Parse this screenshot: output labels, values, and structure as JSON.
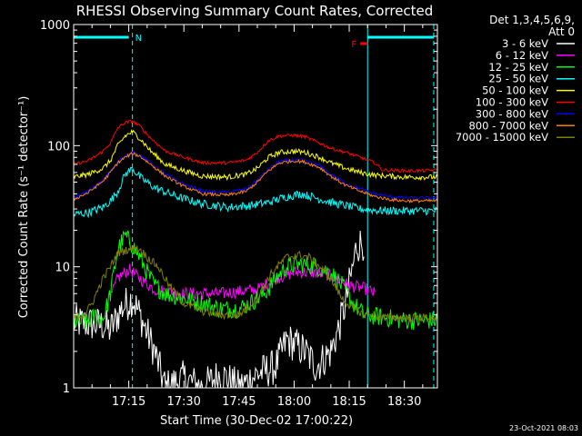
{
  "chart_data": {
    "type": "line",
    "title": "RHESSI Observing Summary Count Rates, Corrected",
    "xlabel": "Start Time (30-Dec-02 17:00:22)",
    "ylabel": "Corrected Count Rate (s⁻¹ detector⁻¹)",
    "y_scale": "log",
    "ylim": [
      1,
      1000
    ],
    "y_ticks": [
      "1",
      "10",
      "100",
      "1000"
    ],
    "x_ticks": [
      "17:15",
      "17:30",
      "17:45",
      "18:00",
      "18:15",
      "18:30"
    ],
    "x_tick_minutes": [
      15,
      30,
      45,
      60,
      75,
      90
    ],
    "xlim_minutes": [
      0,
      99
    ],
    "legend_header": [
      "Det 1,3,4,5,6,9,",
      "Att 0"
    ],
    "legend_position": "right",
    "series": [
      {
        "name": "3 - 6 keV",
        "color": "#ffffff",
        "noise": 0.35,
        "points": [
          [
            0,
            3.5
          ],
          [
            8,
            3.3
          ],
          [
            10,
            3.0
          ],
          [
            13,
            4.5
          ],
          [
            16,
            5.5
          ],
          [
            18,
            4.0
          ],
          [
            22,
            2.0
          ],
          [
            25,
            1.0
          ],
          [
            30,
            1.2
          ],
          [
            35,
            1.0
          ],
          [
            40,
            1.3
          ],
          [
            45,
            1.0
          ],
          [
            50,
            1.3
          ],
          [
            55,
            1.5
          ],
          [
            58,
            2.5
          ],
          [
            60,
            2.3
          ],
          [
            63,
            2.0
          ],
          [
            66,
            1.5
          ],
          [
            70,
            2.0
          ],
          [
            72,
            3.0
          ],
          [
            74,
            5.0
          ],
          [
            76,
            10.0
          ],
          [
            77,
            15.0
          ],
          [
            79,
            16.0
          ]
        ]
      },
      {
        "name": "6 - 12 keV",
        "color": "#ff00ff",
        "noise": 0.12,
        "points": [
          [
            10,
            5.5
          ],
          [
            12,
            8.0
          ],
          [
            15,
            9.5
          ],
          [
            18,
            8.0
          ],
          [
            22,
            6.5
          ],
          [
            30,
            6.0
          ],
          [
            40,
            6.0
          ],
          [
            50,
            6.5
          ],
          [
            55,
            8.0
          ],
          [
            60,
            9.0
          ],
          [
            65,
            9.0
          ],
          [
            70,
            8.5
          ],
          [
            75,
            7.0
          ],
          [
            80,
            6.5
          ],
          [
            82,
            6.0
          ]
        ]
      },
      {
        "name": "12 - 25 keV",
        "color": "#00ff00",
        "noise": 0.18,
        "points": [
          [
            0,
            3.5
          ],
          [
            4,
            3.5
          ],
          [
            6,
            4.0
          ],
          [
            8,
            3.7
          ],
          [
            10,
            6.0
          ],
          [
            12,
            14.0
          ],
          [
            14,
            18.0
          ],
          [
            16,
            15.0
          ],
          [
            18,
            12.0
          ],
          [
            20,
            9.0
          ],
          [
            22,
            7.0
          ],
          [
            25,
            6.0
          ],
          [
            30,
            5.5
          ],
          [
            35,
            5.0
          ],
          [
            40,
            4.5
          ],
          [
            45,
            4.5
          ],
          [
            48,
            5.0
          ],
          [
            52,
            6.0
          ],
          [
            55,
            8.0
          ],
          [
            58,
            10.0
          ],
          [
            62,
            10.5
          ],
          [
            66,
            10.0
          ],
          [
            70,
            9.0
          ],
          [
            73,
            7.0
          ],
          [
            76,
            5.0
          ],
          [
            79,
            4.0
          ],
          [
            85,
            3.8
          ],
          [
            90,
            3.6
          ],
          [
            95,
            3.6
          ],
          [
            99,
            3.6
          ]
        ]
      },
      {
        "name": "25 - 50 keV",
        "color": "#00ffff",
        "noise": 0.08,
        "points": [
          [
            0,
            27
          ],
          [
            4,
            28
          ],
          [
            8,
            31
          ],
          [
            10,
            35
          ],
          [
            12,
            42
          ],
          [
            14,
            58
          ],
          [
            16,
            65
          ],
          [
            18,
            55
          ],
          [
            22,
            45
          ],
          [
            28,
            38
          ],
          [
            35,
            33
          ],
          [
            42,
            31
          ],
          [
            48,
            32
          ],
          [
            53,
            34
          ],
          [
            58,
            38
          ],
          [
            62,
            40
          ],
          [
            66,
            37
          ],
          [
            70,
            34
          ],
          [
            74,
            32
          ],
          [
            78,
            30
          ],
          [
            84,
            29
          ],
          [
            90,
            29
          ],
          [
            95,
            29
          ],
          [
            99,
            29
          ]
        ]
      },
      {
        "name": "50 - 100 keV",
        "color": "#ffff00",
        "noise": 0.05,
        "points": [
          [
            0,
            55
          ],
          [
            4,
            58
          ],
          [
            8,
            65
          ],
          [
            10,
            75
          ],
          [
            12,
            100
          ],
          [
            14,
            120
          ],
          [
            16,
            130
          ],
          [
            18,
            115
          ],
          [
            21,
            90
          ],
          [
            25,
            70
          ],
          [
            30,
            62
          ],
          [
            35,
            56
          ],
          [
            42,
            55
          ],
          [
            47,
            58
          ],
          [
            50,
            65
          ],
          [
            53,
            80
          ],
          [
            56,
            88
          ],
          [
            60,
            90
          ],
          [
            63,
            88
          ],
          [
            67,
            80
          ],
          [
            70,
            72
          ],
          [
            74,
            65
          ],
          [
            78,
            60
          ],
          [
            82,
            57
          ],
          [
            86,
            56
          ],
          [
            90,
            55
          ],
          [
            95,
            55
          ],
          [
            99,
            55
          ]
        ]
      },
      {
        "name": "100 - 300 keV",
        "color": "#ff0000",
        "noise": 0.03,
        "points": [
          [
            0,
            70
          ],
          [
            4,
            75
          ],
          [
            8,
            90
          ],
          [
            10,
            105
          ],
          [
            12,
            140
          ],
          [
            14,
            155
          ],
          [
            16,
            160
          ],
          [
            18,
            145
          ],
          [
            21,
            115
          ],
          [
            25,
            90
          ],
          [
            30,
            80
          ],
          [
            35,
            72
          ],
          [
            42,
            72
          ],
          [
            47,
            76
          ],
          [
            50,
            88
          ],
          [
            53,
            110
          ],
          [
            56,
            120
          ],
          [
            60,
            122
          ],
          [
            63,
            118
          ],
          [
            67,
            105
          ],
          [
            70,
            95
          ],
          [
            74,
            88
          ],
          [
            78,
            80
          ],
          [
            82,
            72
          ],
          [
            84,
            63
          ],
          [
            90,
            62
          ],
          [
            95,
            62
          ],
          [
            99,
            63
          ]
        ]
      },
      {
        "name": "300 - 800 keV",
        "color": "#0000ff",
        "noise": 0.03,
        "points": [
          [
            0,
            37
          ],
          [
            4,
            42
          ],
          [
            8,
            52
          ],
          [
            10,
            62
          ],
          [
            12,
            74
          ],
          [
            14,
            82
          ],
          [
            16,
            88
          ],
          [
            18,
            84
          ],
          [
            21,
            72
          ],
          [
            25,
            58
          ],
          [
            30,
            48
          ],
          [
            35,
            42
          ],
          [
            42,
            41
          ],
          [
            47,
            44
          ],
          [
            50,
            52
          ],
          [
            53,
            64
          ],
          [
            56,
            74
          ],
          [
            60,
            77
          ],
          [
            63,
            75
          ],
          [
            67,
            68
          ],
          [
            70,
            58
          ],
          [
            74,
            49
          ],
          [
            78,
            44
          ],
          [
            82,
            40
          ],
          [
            86,
            38
          ],
          [
            90,
            37
          ],
          [
            95,
            37
          ],
          [
            99,
            37
          ]
        ]
      },
      {
        "name": "800 - 7000 keV",
        "color": "#ff8000",
        "noise": 0.03,
        "points": [
          [
            0,
            36
          ],
          [
            4,
            41
          ],
          [
            8,
            51
          ],
          [
            10,
            60
          ],
          [
            12,
            72
          ],
          [
            14,
            80
          ],
          [
            16,
            86
          ],
          [
            18,
            82
          ],
          [
            21,
            70
          ],
          [
            25,
            56
          ],
          [
            30,
            46
          ],
          [
            35,
            40
          ],
          [
            42,
            39
          ],
          [
            47,
            42
          ],
          [
            50,
            50
          ],
          [
            53,
            62
          ],
          [
            56,
            72
          ],
          [
            60,
            75
          ],
          [
            63,
            73
          ],
          [
            67,
            66
          ],
          [
            70,
            56
          ],
          [
            74,
            47
          ],
          [
            78,
            42
          ],
          [
            82,
            38
          ],
          [
            86,
            36
          ],
          [
            90,
            35
          ],
          [
            95,
            35
          ],
          [
            99,
            35
          ]
        ]
      },
      {
        "name": "7000 - 15000 keV",
        "color": "#808000",
        "noise": 0.08,
        "points": [
          [
            0,
            3.8
          ],
          [
            3,
            4.0
          ],
          [
            5,
            5.0
          ],
          [
            8,
            8.0
          ],
          [
            10,
            10.0
          ],
          [
            12,
            13.0
          ],
          [
            15,
            14.0
          ],
          [
            18,
            14.0
          ],
          [
            20,
            12.0
          ],
          [
            23,
            10.0
          ],
          [
            26,
            7.0
          ],
          [
            30,
            5.0
          ],
          [
            35,
            4.3
          ],
          [
            40,
            4.0
          ],
          [
            45,
            4.0
          ],
          [
            50,
            5.5
          ],
          [
            54,
            9.0
          ],
          [
            58,
            12.0
          ],
          [
            61,
            12.5
          ],
          [
            64,
            12.0
          ],
          [
            67,
            10.0
          ],
          [
            70,
            8.0
          ],
          [
            73,
            5.5
          ],
          [
            76,
            4.5
          ],
          [
            80,
            4.0
          ],
          [
            85,
            3.8
          ],
          [
            90,
            3.8
          ],
          [
            95,
            3.8
          ],
          [
            99,
            3.8
          ]
        ]
      }
    ],
    "annotations": {
      "night_label": "N",
      "flag_label": "F",
      "vertical_lines_minutes": [
        0,
        16,
        80,
        98
      ],
      "solid_lines_minutes": [
        0,
        80
      ],
      "night_interval_minutes": [
        0,
        16
      ],
      "flare_marker_minutes": [
        78,
        80
      ],
      "day_interval_minutes": [
        80,
        98
      ]
    }
  },
  "footer": {
    "timestamp": "23-Oct-2021 08:03"
  }
}
